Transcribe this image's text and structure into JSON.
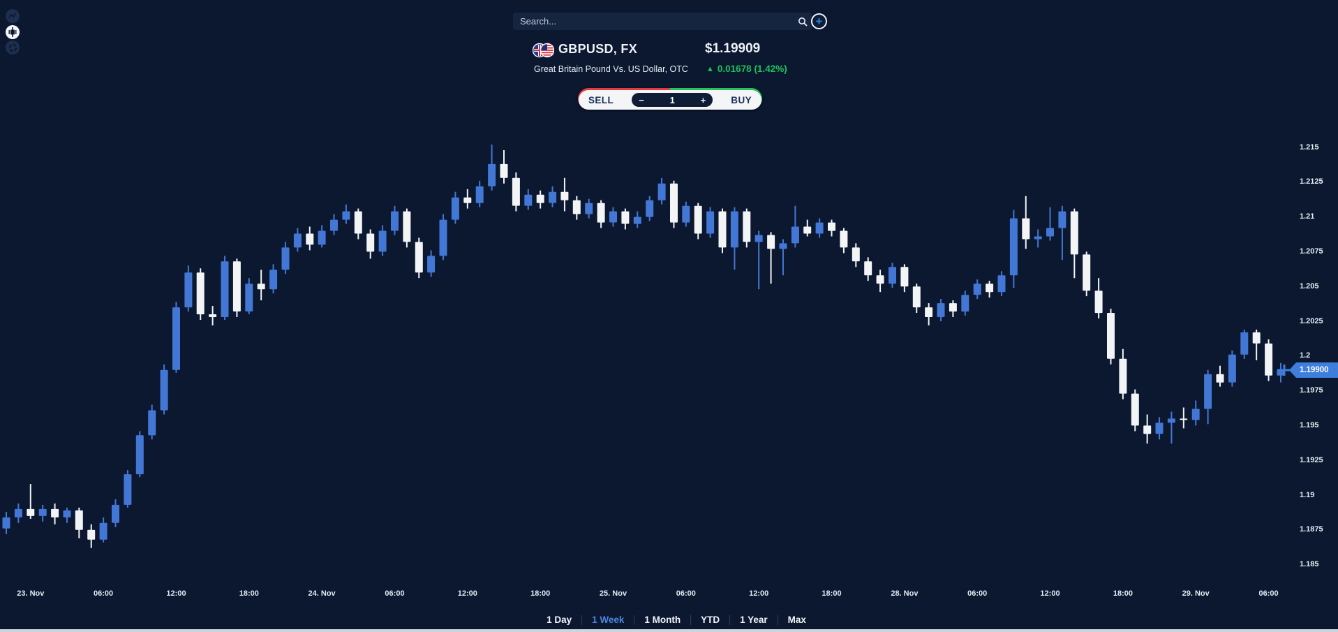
{
  "search": {
    "placeholder": "Search..."
  },
  "chart_tools": {
    "items": [
      {
        "id": "line-chart",
        "active": false
      },
      {
        "id": "candlestick-chart",
        "active": true
      },
      {
        "id": "donut-chart",
        "active": false
      }
    ]
  },
  "instrument": {
    "symbol": "GBPUSD, FX",
    "name": "Great Britain Pound Vs. US Dollar, OTC",
    "price": "$1.19909",
    "change_arrow": "▲",
    "change": "0.01678 (1.42%)",
    "change_color": "#1dc15c"
  },
  "trade_widget": {
    "sell_label": "SELL",
    "buy_label": "BUY",
    "minus_label": "−",
    "quantity": "1",
    "plus_label": "+",
    "sell_color": "#e23b3e",
    "buy_color": "#27c060"
  },
  "timeframes": {
    "options": [
      "1 Day",
      "1 Week",
      "1 Month",
      "YTD",
      "1 Year",
      "Max"
    ],
    "selected": "1 Week",
    "selected_color": "#4d84e0"
  },
  "current_price": {
    "label": "1.19900",
    "value": 1.199,
    "marker_color": "#3e7fdd"
  },
  "chart_data": {
    "type": "candlestick",
    "title": "GBPUSD hourly candles, 1 week",
    "up_color": "#4377d6",
    "down_color": "#f2f4f6",
    "background": "#0b1830",
    "grid": false,
    "legend": "none",
    "price_range": [
      1.185,
      1.215
    ],
    "y_ticks": [
      "1.215",
      "1.2125",
      "1.21",
      "1.2075",
      "1.205",
      "1.2025",
      "1.2",
      "1.1975",
      "1.195",
      "1.1925",
      "1.19",
      "1.1875",
      "1.185"
    ],
    "x_ticks": [
      {
        "i": 2,
        "label": "23. Nov"
      },
      {
        "i": 8,
        "label": "06:00"
      },
      {
        "i": 14,
        "label": "12:00"
      },
      {
        "i": 20,
        "label": "18:00"
      },
      {
        "i": 26,
        "label": "24. Nov"
      },
      {
        "i": 32,
        "label": "06:00"
      },
      {
        "i": 38,
        "label": "12:00"
      },
      {
        "i": 44,
        "label": "18:00"
      },
      {
        "i": 50,
        "label": "25. Nov"
      },
      {
        "i": 56,
        "label": "06:00"
      },
      {
        "i": 62,
        "label": "12:00"
      },
      {
        "i": 68,
        "label": "18:00"
      },
      {
        "i": 74,
        "label": "28. Nov"
      },
      {
        "i": 80,
        "label": "06:00"
      },
      {
        "i": 86,
        "label": "12:00"
      },
      {
        "i": 92,
        "label": "18:00"
      },
      {
        "i": 98,
        "label": "29. Nov"
      },
      {
        "i": 104,
        "label": "06:00"
      }
    ],
    "candles": [
      [
        1.1876,
        1.1888,
        1.1872,
        1.1884
      ],
      [
        1.1884,
        1.1894,
        1.188,
        1.189
      ],
      [
        1.189,
        1.1908,
        1.1883,
        1.1885
      ],
      [
        1.1885,
        1.1893,
        1.1881,
        1.189
      ],
      [
        1.189,
        1.1894,
        1.1879,
        1.1884
      ],
      [
        1.1884,
        1.1891,
        1.188,
        1.1889
      ],
      [
        1.1889,
        1.1891,
        1.1869,
        1.1875
      ],
      [
        1.1875,
        1.1879,
        1.1862,
        1.1868
      ],
      [
        1.1868,
        1.1884,
        1.1866,
        1.188
      ],
      [
        1.188,
        1.1897,
        1.1877,
        1.1893
      ],
      [
        1.1893,
        1.1918,
        1.1891,
        1.1915
      ],
      [
        1.1915,
        1.1946,
        1.1913,
        1.1943
      ],
      [
        1.1943,
        1.1965,
        1.194,
        1.1961
      ],
      [
        1.1961,
        1.1994,
        1.1958,
        1.199
      ],
      [
        1.199,
        1.2039,
        1.1988,
        1.2035
      ],
      [
        1.2035,
        1.2065,
        1.2032,
        1.206
      ],
      [
        1.206,
        1.2063,
        1.2026,
        1.203
      ],
      [
        1.203,
        1.2036,
        1.2022,
        1.2028
      ],
      [
        1.2028,
        1.2072,
        1.2026,
        1.2068
      ],
      [
        1.2068,
        1.207,
        1.2028,
        1.2032
      ],
      [
        1.2032,
        1.2056,
        1.203,
        1.2052
      ],
      [
        1.2052,
        1.2062,
        1.204,
        1.2048
      ],
      [
        1.2048,
        1.2066,
        1.2045,
        1.2062
      ],
      [
        1.2062,
        1.2082,
        1.2059,
        1.2078
      ],
      [
        1.2078,
        1.2092,
        1.2075,
        1.2088
      ],
      [
        1.2088,
        1.2093,
        1.2076,
        1.208
      ],
      [
        1.208,
        1.2094,
        1.2078,
        1.209
      ],
      [
        1.209,
        1.2102,
        1.2087,
        1.2098
      ],
      [
        1.2098,
        1.2109,
        1.2095,
        1.2104
      ],
      [
        1.2104,
        1.2106,
        1.2084,
        1.2088
      ],
      [
        1.2088,
        1.2091,
        1.207,
        1.2075
      ],
      [
        1.2075,
        1.2094,
        1.2072,
        1.209
      ],
      [
        1.209,
        1.2108,
        1.2087,
        1.2104
      ],
      [
        1.2104,
        1.2106,
        1.2078,
        1.2082
      ],
      [
        1.2082,
        1.2085,
        1.2056,
        1.206
      ],
      [
        1.206,
        1.2076,
        1.2057,
        1.2072
      ],
      [
        1.2072,
        1.2102,
        1.2069,
        1.2098
      ],
      [
        1.2098,
        1.2118,
        1.2095,
        1.2114
      ],
      [
        1.2114,
        1.212,
        1.2106,
        1.211
      ],
      [
        1.211,
        1.2126,
        1.2107,
        1.2122
      ],
      [
        1.2122,
        1.2152,
        1.2119,
        1.2138
      ],
      [
        1.2138,
        1.2148,
        1.2124,
        1.2128
      ],
      [
        1.2128,
        1.2132,
        1.2104,
        1.2108
      ],
      [
        1.2108,
        1.212,
        1.2105,
        1.2116
      ],
      [
        1.2116,
        1.2119,
        1.2106,
        1.211
      ],
      [
        1.211,
        1.2122,
        1.2107,
        1.2118
      ],
      [
        1.2118,
        1.2128,
        1.2104,
        1.2112
      ],
      [
        1.2112,
        1.2115,
        1.2098,
        1.2102
      ],
      [
        1.2102,
        1.2113,
        1.2099,
        1.211
      ],
      [
        1.211,
        1.2112,
        1.2092,
        1.2096
      ],
      [
        1.2096,
        1.2107,
        1.2093,
        1.2104
      ],
      [
        1.2104,
        1.2106,
        1.2091,
        1.2095
      ],
      [
        1.2095,
        1.2104,
        1.2092,
        1.21
      ],
      [
        1.21,
        1.2115,
        1.2097,
        1.2112
      ],
      [
        1.2112,
        1.2128,
        1.2109,
        1.2124
      ],
      [
        1.2124,
        1.2126,
        1.2092,
        1.2096
      ],
      [
        1.2096,
        1.2111,
        1.2093,
        1.2108
      ],
      [
        1.2108,
        1.211,
        1.2084,
        1.2088
      ],
      [
        1.2088,
        1.2107,
        1.2085,
        1.2104
      ],
      [
        1.2104,
        1.2106,
        1.2074,
        1.2078
      ],
      [
        1.2078,
        1.2107,
        1.2062,
        1.2104
      ],
      [
        1.2104,
        1.2106,
        1.2078,
        1.2082
      ],
      [
        1.2082,
        1.209,
        1.2048,
        1.2087
      ],
      [
        1.2087,
        1.2089,
        1.2052,
        1.2077
      ],
      [
        1.2077,
        1.2084,
        1.2058,
        1.2081
      ],
      [
        1.2081,
        1.2108,
        1.2078,
        1.2093
      ],
      [
        1.2093,
        1.2098,
        1.2086,
        1.2088
      ],
      [
        1.2088,
        1.2099,
        1.2085,
        1.2096
      ],
      [
        1.2096,
        1.2098,
        1.2086,
        1.209
      ],
      [
        1.209,
        1.2092,
        1.2074,
        1.2078
      ],
      [
        1.2078,
        1.2081,
        1.2064,
        1.2068
      ],
      [
        1.2068,
        1.2071,
        1.2054,
        1.2058
      ],
      [
        1.2058,
        1.2062,
        1.2046,
        1.2052
      ],
      [
        1.2052,
        1.2067,
        1.2049,
        1.2064
      ],
      [
        1.2064,
        1.2066,
        1.2046,
        1.205
      ],
      [
        1.205,
        1.2052,
        1.2031,
        1.2035
      ],
      [
        1.2035,
        1.2038,
        1.2022,
        1.2028
      ],
      [
        1.2028,
        1.2041,
        1.2025,
        1.2038
      ],
      [
        1.2038,
        1.204,
        1.2028,
        1.2032
      ],
      [
        1.2032,
        1.2047,
        1.2029,
        1.2044
      ],
      [
        1.2044,
        1.2055,
        1.2041,
        1.2052
      ],
      [
        1.2052,
        1.2054,
        1.2042,
        1.2046
      ],
      [
        1.2046,
        1.2061,
        1.2043,
        1.2058
      ],
      [
        1.2058,
        1.2105,
        1.2049,
        1.2099
      ],
      [
        1.2099,
        1.2115,
        1.2077,
        1.2084
      ],
      [
        1.2084,
        1.2091,
        1.2078,
        1.2086
      ],
      [
        1.2086,
        1.2107,
        1.2083,
        1.2092
      ],
      [
        1.2092,
        1.2108,
        1.2069,
        1.2104
      ],
      [
        1.2104,
        1.2106,
        1.2056,
        1.2073
      ],
      [
        1.2073,
        1.2075,
        1.2043,
        1.2047
      ],
      [
        1.2047,
        1.2056,
        1.2027,
        1.2031
      ],
      [
        1.2031,
        1.2034,
        1.1994,
        1.1998
      ],
      [
        1.1998,
        1.2005,
        1.1969,
        1.1973
      ],
      [
        1.1973,
        1.1976,
        1.1946,
        1.195
      ],
      [
        1.195,
        1.1958,
        1.1937,
        1.1944
      ],
      [
        1.1944,
        1.1956,
        1.194,
        1.1952
      ],
      [
        1.1952,
        1.196,
        1.1937,
        1.1955
      ],
      [
        1.1955,
        1.1963,
        1.1948,
        1.1954
      ],
      [
        1.1954,
        1.1968,
        1.195,
        1.1962
      ],
      [
        1.1962,
        1.199,
        1.1951,
        1.1987
      ],
      [
        1.1987,
        1.1993,
        1.1978,
        1.1981
      ],
      [
        1.1981,
        1.2004,
        1.1978,
        1.2001
      ],
      [
        1.2001,
        1.2019,
        1.1998,
        1.2017
      ],
      [
        1.2017,
        1.2019,
        1.1997,
        1.2009
      ],
      [
        1.2009,
        1.2012,
        1.1982,
        1.1986
      ],
      [
        1.1986,
        1.1995,
        1.1981,
        1.199
      ]
    ]
  }
}
